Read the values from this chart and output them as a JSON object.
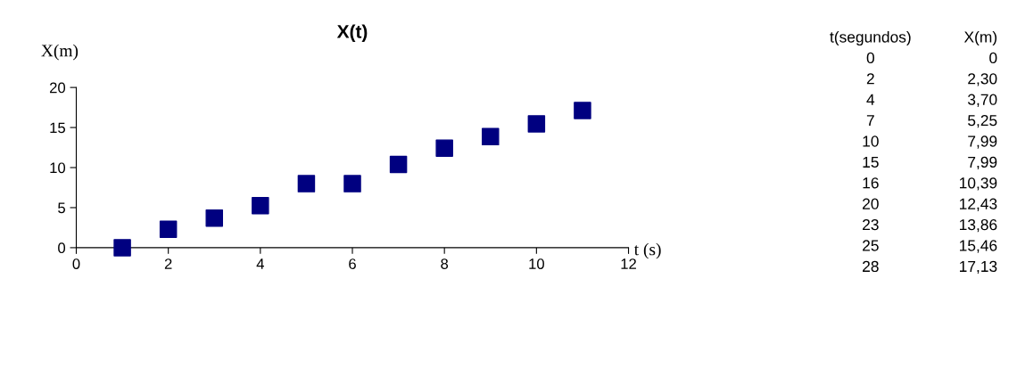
{
  "chart_data": [
    {
      "type": "scatter",
      "title": "X(t)",
      "xlabel": "t (s)",
      "ylabel": "X(m)",
      "x": [
        1,
        2,
        3,
        4,
        5,
        6,
        7,
        8,
        9,
        10,
        11
      ],
      "series": [
        {
          "color": "#000080",
          "values": [
            0,
            2.3,
            3.7,
            5.25,
            7.99,
            7.99,
            10.39,
            12.43,
            13.86,
            15.46,
            17.13
          ]
        }
      ],
      "xlim": [
        0,
        12
      ],
      "xticks": [
        0,
        2,
        4,
        6,
        8,
        10,
        12
      ],
      "ylim": [
        0,
        20
      ],
      "yticks": [
        0,
        5,
        10,
        15,
        20
      ],
      "marker": "square",
      "grid": false,
      "legend": false
    },
    {
      "type": "other",
      "categories": [
        "t(segundos)",
        "X(m)"
      ],
      "annotations": [
        "0",
        "0",
        "2",
        "2,30",
        "4",
        "3,70",
        "7",
        "5,25",
        "10",
        "7,99",
        "15",
        "7,99",
        "16",
        "10,39",
        "20",
        "12,43",
        "23",
        "13,86",
        "25",
        "15,46",
        "28",
        "17,13"
      ]
    }
  ]
}
